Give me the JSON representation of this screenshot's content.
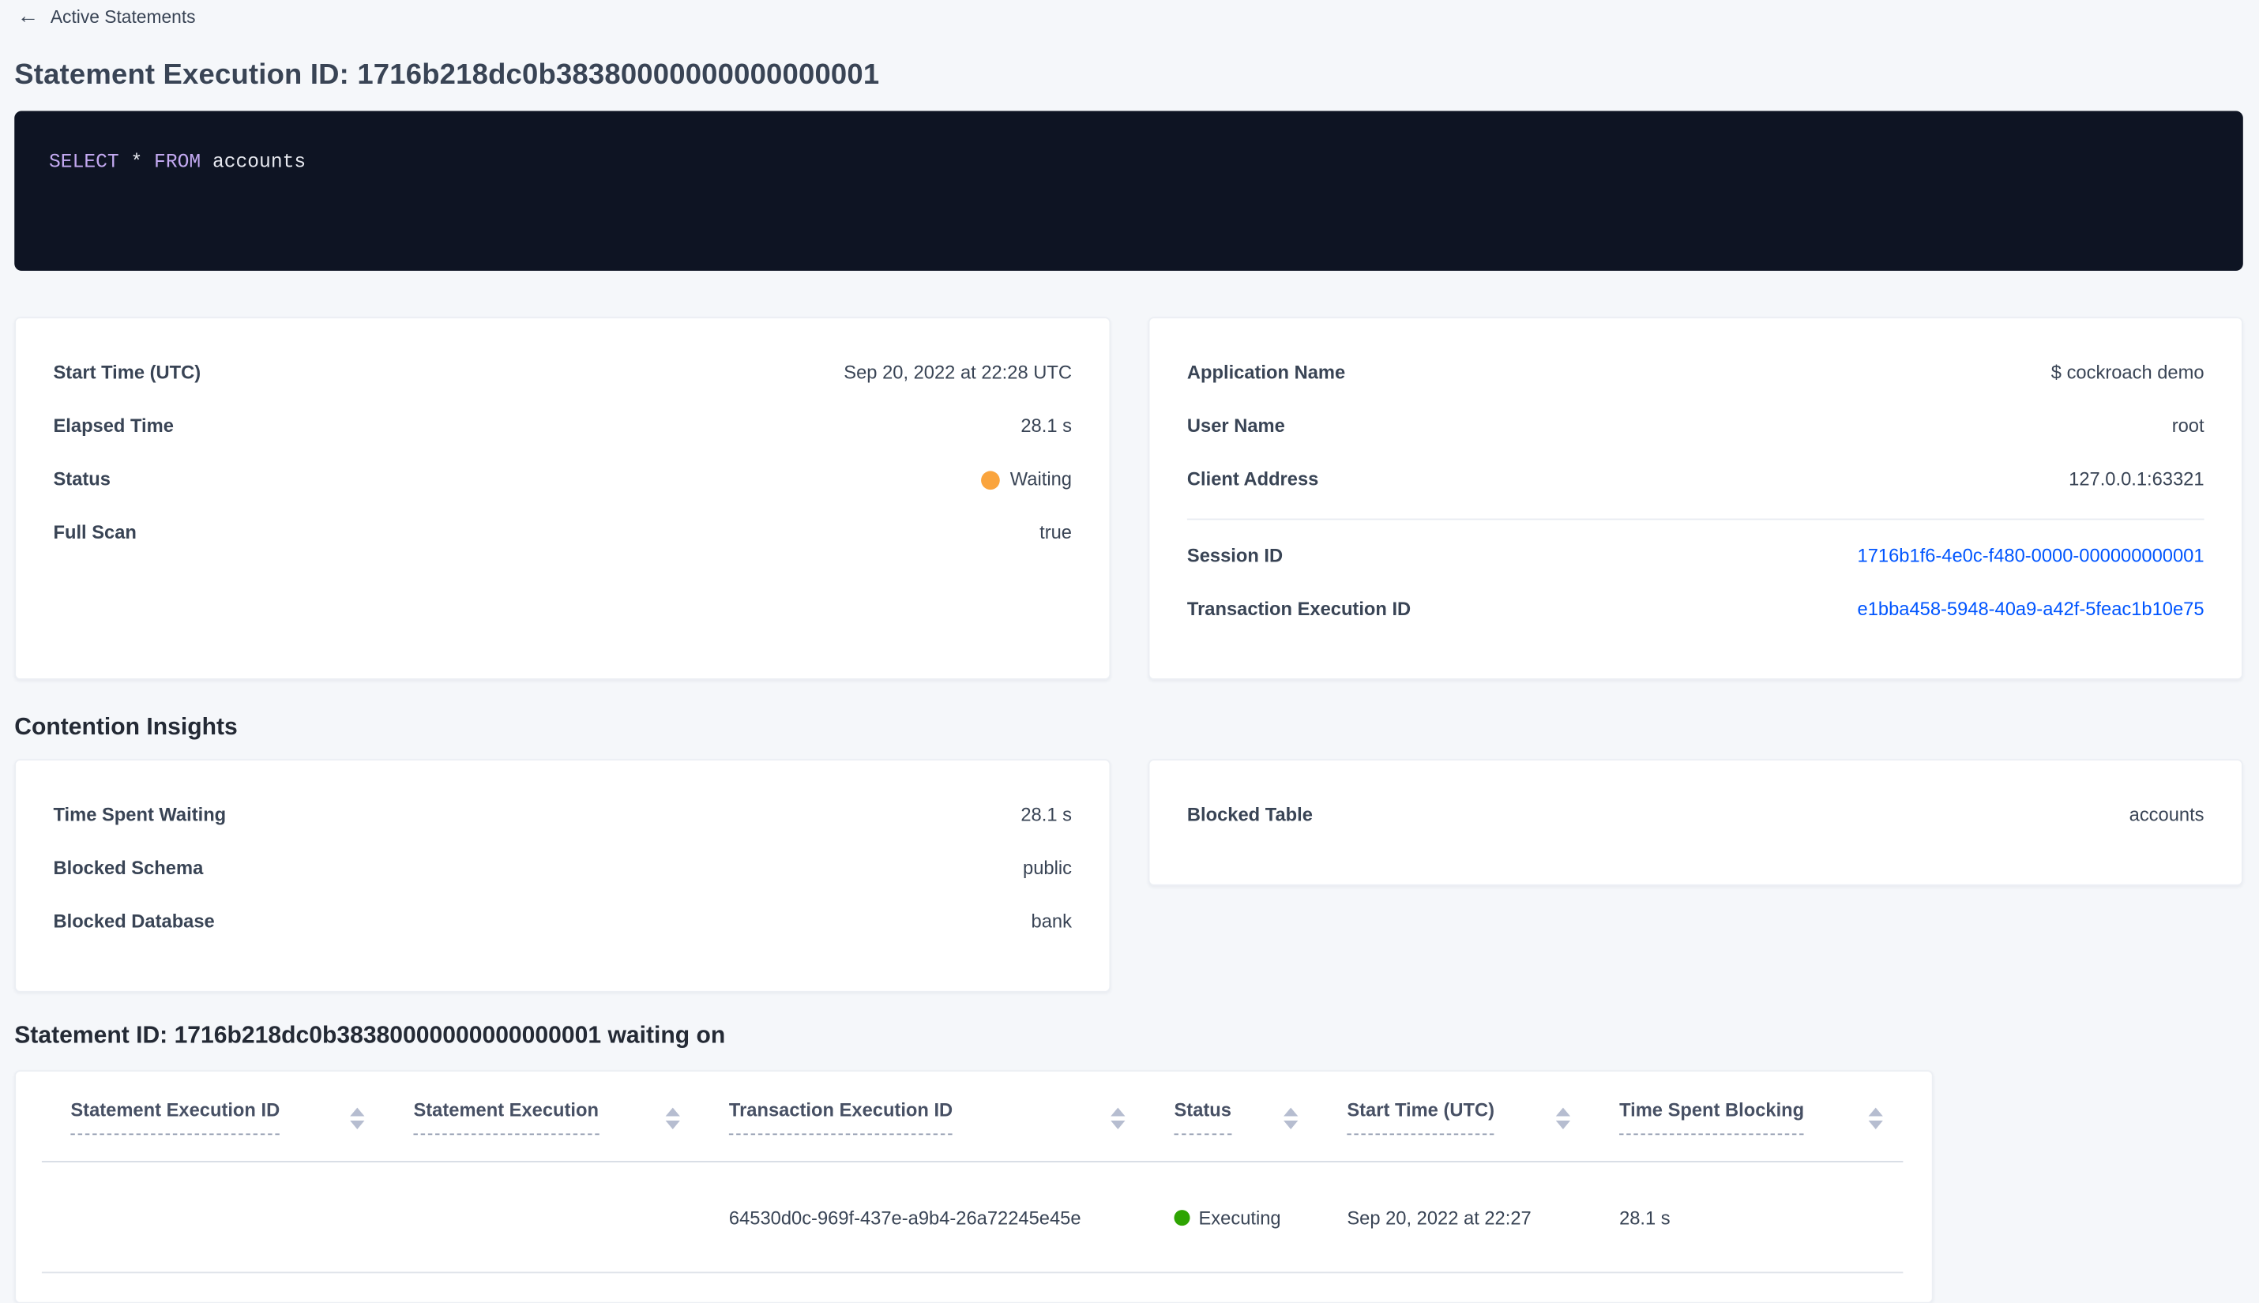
{
  "colors": {
    "link": "#0055ff",
    "status_waiting": "#faa43d",
    "status_executing": "#2ea402"
  },
  "breadcrumb": {
    "icon": "←",
    "label": "Active Statements"
  },
  "title": "Statement Execution ID: 1716b218dc0b38380000000000000001",
  "sql_box": {
    "keyword1": "SELECT",
    "star": "*",
    "keyword2": "FROM",
    "identifier": "accounts"
  },
  "execution_card": {
    "rows": [
      {
        "label": "Start Time (UTC)",
        "value": "Sep 20, 2022 at 22:28 UTC"
      },
      {
        "label": "Elapsed Time",
        "value": "28.1 s"
      },
      {
        "label": "Status",
        "value": "Waiting"
      },
      {
        "label": "Full Scan",
        "value": "true"
      }
    ]
  },
  "session_card": {
    "rows": [
      {
        "label": "Application Name",
        "value": "$ cockroach demo"
      },
      {
        "label": "User Name",
        "value": "root"
      },
      {
        "label": "Client Address",
        "value": "127.0.0.1:63321"
      }
    ],
    "link_rows": [
      {
        "label": "Session ID",
        "value": "1716b1f6-4e0c-f480-0000-000000000001"
      },
      {
        "label": "Transaction Execution ID",
        "value": "e1bba458-5948-40a9-a42f-5feac1b10e75"
      }
    ]
  },
  "contention": {
    "heading": "Contention Insights",
    "left_rows": [
      {
        "label": "Time Spent Waiting",
        "value": "28.1 s"
      },
      {
        "label": "Blocked Schema",
        "value": "public"
      },
      {
        "label": "Blocked Database",
        "value": "bank"
      }
    ],
    "right_rows": [
      {
        "label": "Blocked Table",
        "value": "accounts"
      }
    ]
  },
  "waiting_table": {
    "heading": "Statement ID: 1716b218dc0b38380000000000000001 waiting on",
    "columns": [
      "Statement Execution ID",
      "Statement Execution",
      "Transaction Execution ID",
      "Status",
      "Start Time (UTC)",
      "Time Spent Blocking"
    ],
    "row": {
      "statement_execution_id": "",
      "statement_execution": "",
      "transaction_execution_id": "64530d0c-969f-437e-a9b4-26a72245e45e",
      "status": "Executing",
      "start_time": "Sep 20, 2022 at 22:27",
      "time_spent_blocking": "28.1 s"
    }
  }
}
